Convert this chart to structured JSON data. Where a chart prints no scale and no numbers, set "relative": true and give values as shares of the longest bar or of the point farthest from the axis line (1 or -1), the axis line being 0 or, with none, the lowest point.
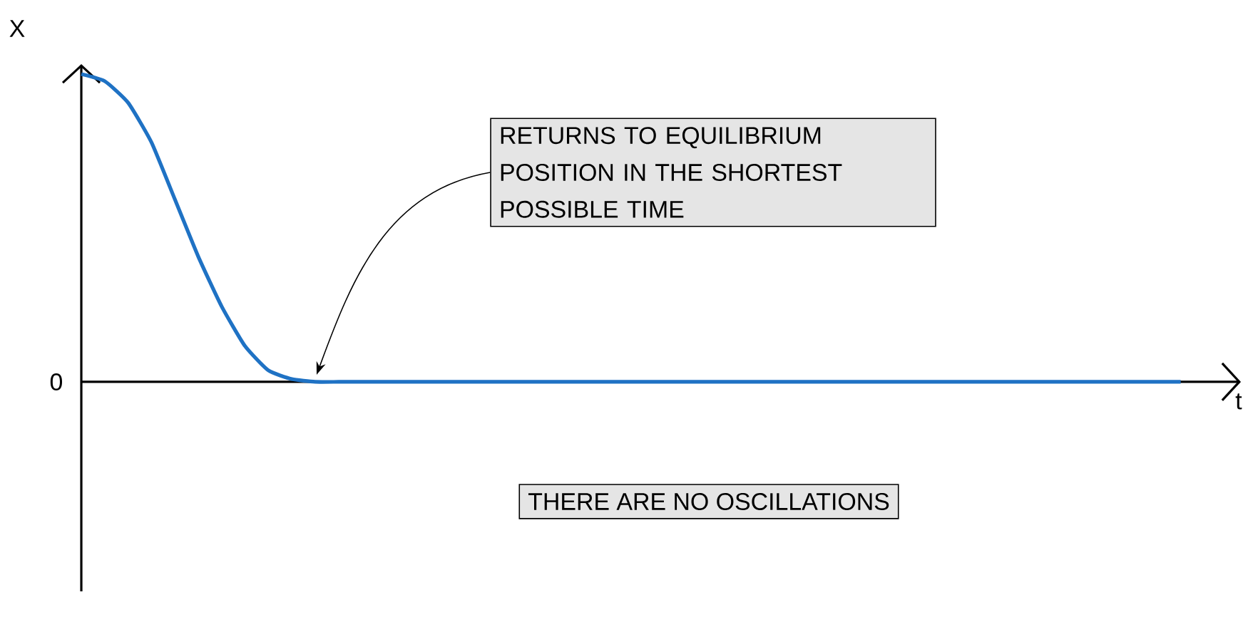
{
  "chart_data": {
    "type": "line",
    "relative": true,
    "xlabel": "t",
    "ylabel": "X",
    "categories": [
      null,
      null,
      null,
      null,
      null,
      null,
      null,
      null,
      null,
      null,
      null,
      null,
      null,
      null,
      null,
      null,
      null,
      null,
      null,
      null,
      null,
      null,
      null,
      null,
      null,
      null,
      null,
      null,
      null,
      null,
      null,
      null,
      null,
      null,
      null,
      null,
      null,
      null,
      null,
      null,
      null,
      null,
      null,
      null,
      null,
      null,
      null,
      null
    ],
    "series": [
      {
        "color": "#1f72c4",
        "values": [
          1.0,
          0.977,
          0.907,
          0.778,
          0.593,
          0.407,
          0.245,
          0.116,
          0.037,
          0.009,
          0,
          0,
          0,
          0,
          0,
          0,
          0,
          0,
          0,
          0,
          0,
          0,
          0,
          0,
          0,
          0,
          0,
          0,
          0,
          0,
          0,
          0,
          0,
          0,
          0,
          0,
          0,
          0,
          0,
          0,
          0,
          0,
          0,
          0,
          0,
          0,
          0,
          0
        ]
      }
    ],
    "annotations": [
      "0",
      "RETURNS TO EQUILIBRIUM POSITION IN THE SHORTEST POSSIBLE TIME",
      "THERE ARE NO OSCILLATIONS"
    ]
  }
}
